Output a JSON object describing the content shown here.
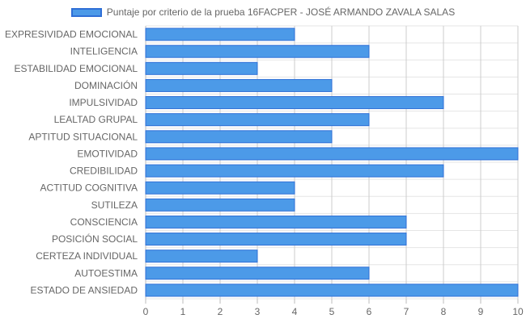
{
  "chart_data": {
    "type": "bar",
    "orientation": "horizontal",
    "legend_position": "top-center",
    "grid": true,
    "xlim": [
      0,
      10
    ],
    "xticks": [
      "0",
      "1",
      "2",
      "3",
      "4",
      "5",
      "6",
      "7",
      "8",
      "9",
      "10"
    ],
    "categories": [
      "EXPRESIVIDAD EMOCIONAL",
      "INTELIGENCIA",
      "ESTABILIDAD EMOCIONAL",
      "DOMINACIÓN",
      "IMPULSIVIDAD",
      "LEALTAD GRUPAL",
      "APTITUD SITUACIONAL",
      "EMOTIVIDAD",
      "CREDIBILIDAD",
      "ACTITUD COGNITIVA",
      "SUTILEZA",
      "CONSCIENCIA",
      "POSICIÓN SOCIAL",
      "CERTEZA INDIVIDUAL",
      "AUTOESTIMA",
      "ESTADO DE ANSIEDAD"
    ],
    "series": [
      {
        "name": "Puntaje por criterio de la prueba 16FACPER - JOSÉ ARMANDO ZAVALA SALAS",
        "values": [
          4,
          6,
          3,
          5,
          8,
          6,
          5,
          10,
          8,
          4,
          4,
          7,
          7,
          3,
          6,
          10
        ]
      }
    ],
    "colors": {
      "bar_fill": "#4c9ae8",
      "bar_border": "#2f6fd6",
      "grid": "#e5e5e5",
      "text": "#666666"
    }
  }
}
